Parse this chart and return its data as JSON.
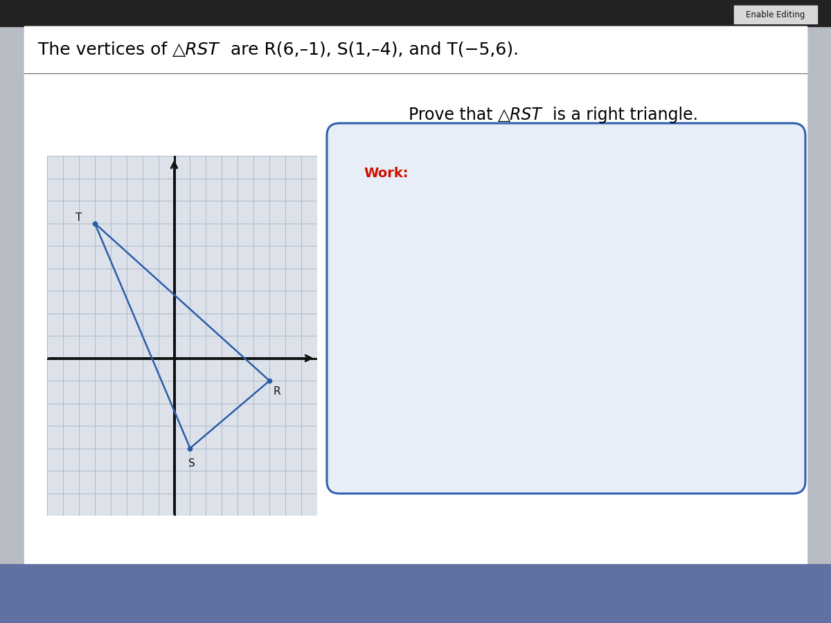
{
  "vertices": {
    "R": [
      6,
      -1
    ],
    "S": [
      1,
      -4
    ],
    "T": [
      -5,
      6
    ]
  },
  "grid_xlim": [
    -8,
    9
  ],
  "grid_ylim": [
    -7,
    9
  ],
  "triangle_color": "#2b5ca8",
  "axis_color": "#111111",
  "grid_color": "#adb8c8",
  "outer_bg": "#b8bcc4",
  "white_area_color": "#ffffff",
  "title_bar_color": "#ffffff",
  "graph_bg": "#dde2ea",
  "box_border_color": "#3060b0",
  "box_fill_color": "#e8eef8",
  "bottom_bar_color": "#6070a0",
  "work_color": "#cc1100",
  "label_fontsize": 11,
  "title_fontsize": 18,
  "prove_fontsize": 17,
  "work_fontsize": 14,
  "enable_editing_text": "Enable Editing",
  "work_text": "Work:"
}
